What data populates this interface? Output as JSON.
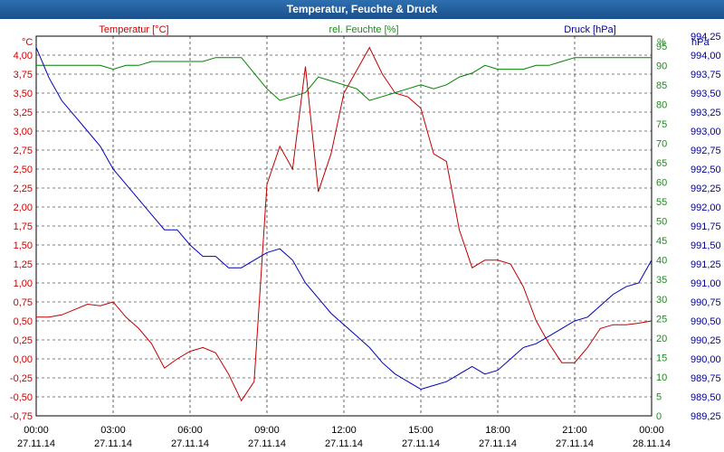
{
  "window": {
    "title": "Temperatur, Feuchte & Druck"
  },
  "colors": {
    "temperature": "#c00000",
    "humidity": "#008000",
    "pressure": "#0000b4",
    "title_bar": "#1f5a99"
  },
  "chart_data": {
    "type": "line",
    "title": "Temperatur, Feuchte & Druck",
    "x": [
      "27.11.14 00:00",
      "00:30",
      "01:00",
      "01:30",
      "02:00",
      "02:30",
      "03:00",
      "03:30",
      "04:00",
      "04:30",
      "05:00",
      "05:30",
      "06:00",
      "06:30",
      "07:00",
      "07:30",
      "08:00",
      "08:30",
      "09:00",
      "09:30",
      "10:00",
      "10:30",
      "11:00",
      "11:30",
      "12:00",
      "12:30",
      "13:00",
      "13:30",
      "14:00",
      "14:30",
      "15:00",
      "15:30",
      "16:00",
      "16:30",
      "17:00",
      "17:30",
      "18:00",
      "18:30",
      "19:00",
      "19:30",
      "20:00",
      "20:30",
      "21:00",
      "21:30",
      "22:00",
      "22:30",
      "23:00",
      "23:30",
      "28.11.14 00:00"
    ],
    "x_ticks": [
      {
        "time": "00:00",
        "date": "27.11.14"
      },
      {
        "time": "03:00",
        "date": "27.11.14"
      },
      {
        "time": "06:00",
        "date": "27.11.14"
      },
      {
        "time": "09:00",
        "date": "27.11.14"
      },
      {
        "time": "12:00",
        "date": "27.11.14"
      },
      {
        "time": "15:00",
        "date": "27.11.14"
      },
      {
        "time": "18:00",
        "date": "27.11.14"
      },
      {
        "time": "21:00",
        "date": "27.11.14"
      },
      {
        "time": "00:00",
        "date": "28.11.14"
      }
    ],
    "series": [
      {
        "name": "Temperatur [°C]",
        "axis": "left",
        "color": "#c00000",
        "values": [
          0.55,
          0.55,
          0.58,
          0.65,
          0.72,
          0.7,
          0.75,
          0.55,
          0.4,
          0.2,
          -0.12,
          0.0,
          0.1,
          0.15,
          0.08,
          -0.2,
          -0.55,
          -0.3,
          2.3,
          2.8,
          2.5,
          3.85,
          2.2,
          2.7,
          3.5,
          3.8,
          4.1,
          3.75,
          3.5,
          3.45,
          3.3,
          2.7,
          2.6,
          1.7,
          1.2,
          1.3,
          1.3,
          1.25,
          0.95,
          0.5,
          0.2,
          -0.05,
          -0.05,
          0.15,
          0.4,
          0.45,
          0.45,
          0.47,
          0.5
        ]
      },
      {
        "name": "rel. Feuchte [%]",
        "axis": "right1",
        "color": "#008000",
        "values": [
          90,
          90,
          90,
          90,
          90,
          90,
          89,
          90,
          90,
          91,
          91,
          91,
          91,
          91,
          92,
          92,
          92,
          88,
          84,
          81,
          82,
          83,
          87,
          86,
          85,
          84,
          81,
          82,
          83,
          84,
          85,
          84,
          85,
          87,
          88,
          90,
          89,
          89,
          89,
          90,
          90,
          91,
          92,
          92,
          92,
          92,
          92,
          92,
          92
        ]
      },
      {
        "name": "Druck [hPa]",
        "axis": "right2",
        "color": "#0000b4",
        "values": [
          994.1,
          993.7,
          993.4,
          993.2,
          993.0,
          992.8,
          992.5,
          992.3,
          992.1,
          991.9,
          991.7,
          991.7,
          991.5,
          991.35,
          991.35,
          991.2,
          991.2,
          991.3,
          991.4,
          991.45,
          991.3,
          991.0,
          990.8,
          990.6,
          990.45,
          990.3,
          990.15,
          989.95,
          989.8,
          989.7,
          989.6,
          989.65,
          989.7,
          989.8,
          989.9,
          989.8,
          989.85,
          990.0,
          990.15,
          990.2,
          990.3,
          990.4,
          990.5,
          990.55,
          990.7,
          990.85,
          990.95,
          991.0,
          991.3
        ]
      }
    ],
    "axes": {
      "left": {
        "unit": "°C",
        "label": "Temperatur [°C]",
        "min": -0.75,
        "max": 4.25,
        "ticks": [
          "4,00",
          "3,75",
          "3,50",
          "3,25",
          "3,00",
          "2,75",
          "2,50",
          "2,25",
          "2,00",
          "1,75",
          "1,50",
          "1,25",
          "1,00",
          "0,75",
          "0,50",
          "0,25",
          "0,00",
          "-0,25",
          "-0,50",
          "-0,75"
        ]
      },
      "right1": {
        "unit": "%",
        "label": "rel. Feuchte [%]",
        "min": 0,
        "max": 97.5,
        "ticks": [
          "95",
          "90",
          "85",
          "80",
          "75",
          "70",
          "65",
          "60",
          "55",
          "50",
          "45",
          "40",
          "35",
          "30",
          "25",
          "20",
          "15",
          "10",
          "5",
          "0"
        ]
      },
      "right2": {
        "unit": "hPa",
        "label": "Druck [hPa]",
        "min": 989.25,
        "max": 994.25,
        "ticks": [
          "994,25",
          "994,00",
          "993,75",
          "993,50",
          "993,25",
          "993,00",
          "992,75",
          "992,50",
          "992,25",
          "992,00",
          "991,75",
          "991,50",
          "991,25",
          "991,00",
          "990,75",
          "990,50",
          "990,25",
          "990,00",
          "989,75",
          "989,50",
          "989,25"
        ]
      }
    },
    "grid": true
  }
}
